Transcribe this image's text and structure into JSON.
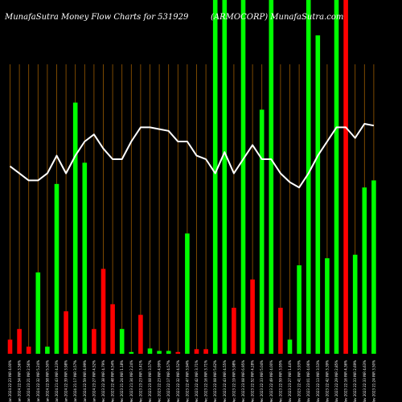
{
  "chart_data": {
    "type": "bar",
    "title": "MunafaSutra  Money Flow  Charts for 531929",
    "subtitle": "(ARMOCORP) MunafaSutra.com",
    "grid": true,
    "grid_color": "#9a5a00",
    "colors": {
      "up": "#00ff00",
      "down": "#ff0000",
      "line": "#ffffff",
      "background": "#000000"
    },
    "ylim": [
      0,
      100
    ],
    "categories": [
      "Fri 12 Jan 2024 22:23 INR 4.00%",
      "Thu 11 Jan 2024 22:54 INR 3.56%",
      "Wed 10 Jan 2024 23:21 INR 2.56%",
      "Tue 09 Jan 2024 22:32 INR 5.24%",
      "Mon 08 Jan 2024 22:58 INR 5.50%",
      "Fri 05 Jan 2024 21:43 INR 4.23%",
      "Thu 04 Jan 2024 22:39 INR 3.98%",
      "Wed 03 Jan 2024 21:17 INR 3.57%",
      "Tue 02 Jan 2024 22:59 INR 4.99%",
      "Mon 01 Jan 2024 23:27 INR 4.52%",
      "Fri 29 Dec 2023 22:38 INR 4.79%",
      "Thu 28 Dec 2023 22:48 INR 4.54%",
      "Wed 27 Dec 2023 21:24 INR 1.18%",
      "Tue 26 Dec 2023 21:34 INR 2.24%",
      "Fri 22 Dec 2023 23:23 INR 3.41%",
      "Thu 21 Dec 2023 23:08 INR 3.57%",
      "Wed 20 Dec 2023 22:23 INR 4.99%",
      "Tue 19 Dec 2023 22:17 INR 4.57%",
      "Mon 18 Dec 2023 22:32 INR 4.52%",
      "Fri 15 Dec 2023 22:47 INR 3.94%",
      "Thu 14 Dec 2023 22:42 INR 3.71%",
      "Wed 13 Dec 2023 22:16 INR 3.71%",
      "Tue 12 Dec 2023 22:08 INR 5.62%",
      "Mon 11 Dec 2023 22:43 INR 4.55%",
      "Fri 08 Dec 2023 22:19 INR 5.98%",
      "Thu 07 Dec 2023 23:08 INR 6.95%",
      "Wed 06 Dec 2023 22:52 INR 4.28%",
      "Tue 05 Dec 2023 22:33 INR 5.04%",
      "Mon 04 Dec 2023 22:49 INR 4.00%",
      "Fri 01 Dec 2023 22:59 INR 3.95%",
      "Thu 30 Nov 2023 23:27 INR 1.44%",
      "Wed 29 Nov 2023 22:41 INR 3.93%",
      "Tue 28 Nov 2023 23:01 INR 4.06%",
      "Mon 27 Nov 2023 22:13 INR 3.53%",
      "Fri 24 Nov 2023 22:42 INR 3.39%",
      "Thu 23 Nov 2023 22:29 INR 2.85%",
      "Wed 22 Nov 2023 22:16 INR 4.36%",
      "Tue 21 Nov 2023 22:33 INR 2.69%",
      "Mon 20 Nov 2023 22:33 INR 4.63%",
      "Fri 17 Nov 2023 21:24 INR 3.50%"
    ],
    "series": [
      {
        "type": "bar",
        "values": [
          4,
          7,
          2,
          23,
          2,
          48,
          12,
          71,
          54,
          7,
          24,
          14,
          7,
          0.5,
          11,
          1.5,
          0.8,
          0.8,
          0.5,
          34,
          1.3,
          1.3,
          100,
          100,
          13,
          100,
          21,
          69,
          100,
          13,
          4,
          25,
          100,
          90,
          27,
          100,
          100,
          28,
          47,
          49
        ],
        "direction": [
          "down",
          "down",
          "down",
          "up",
          "up",
          "up",
          "down",
          "up",
          "up",
          "down",
          "down",
          "down",
          "up",
          "up",
          "down",
          "up",
          "up",
          "up",
          "down",
          "up",
          "down",
          "down",
          "up",
          "up",
          "down",
          "up",
          "down",
          "up",
          "up",
          "down",
          "up",
          "up",
          "up",
          "up",
          "up",
          "up",
          "down",
          "up",
          "up",
          "up"
        ]
      },
      {
        "type": "line",
        "values": [
          53,
          51,
          49,
          49,
          51,
          56,
          51,
          56,
          60,
          62,
          58,
          55,
          55,
          60,
          64,
          64,
          63.5,
          63,
          60,
          60,
          56,
          55,
          51,
          57,
          51,
          55,
          59,
          55,
          55,
          51,
          48.5,
          47,
          51,
          56,
          60,
          64,
          64,
          61,
          65,
          64.5
        ]
      }
    ]
  }
}
